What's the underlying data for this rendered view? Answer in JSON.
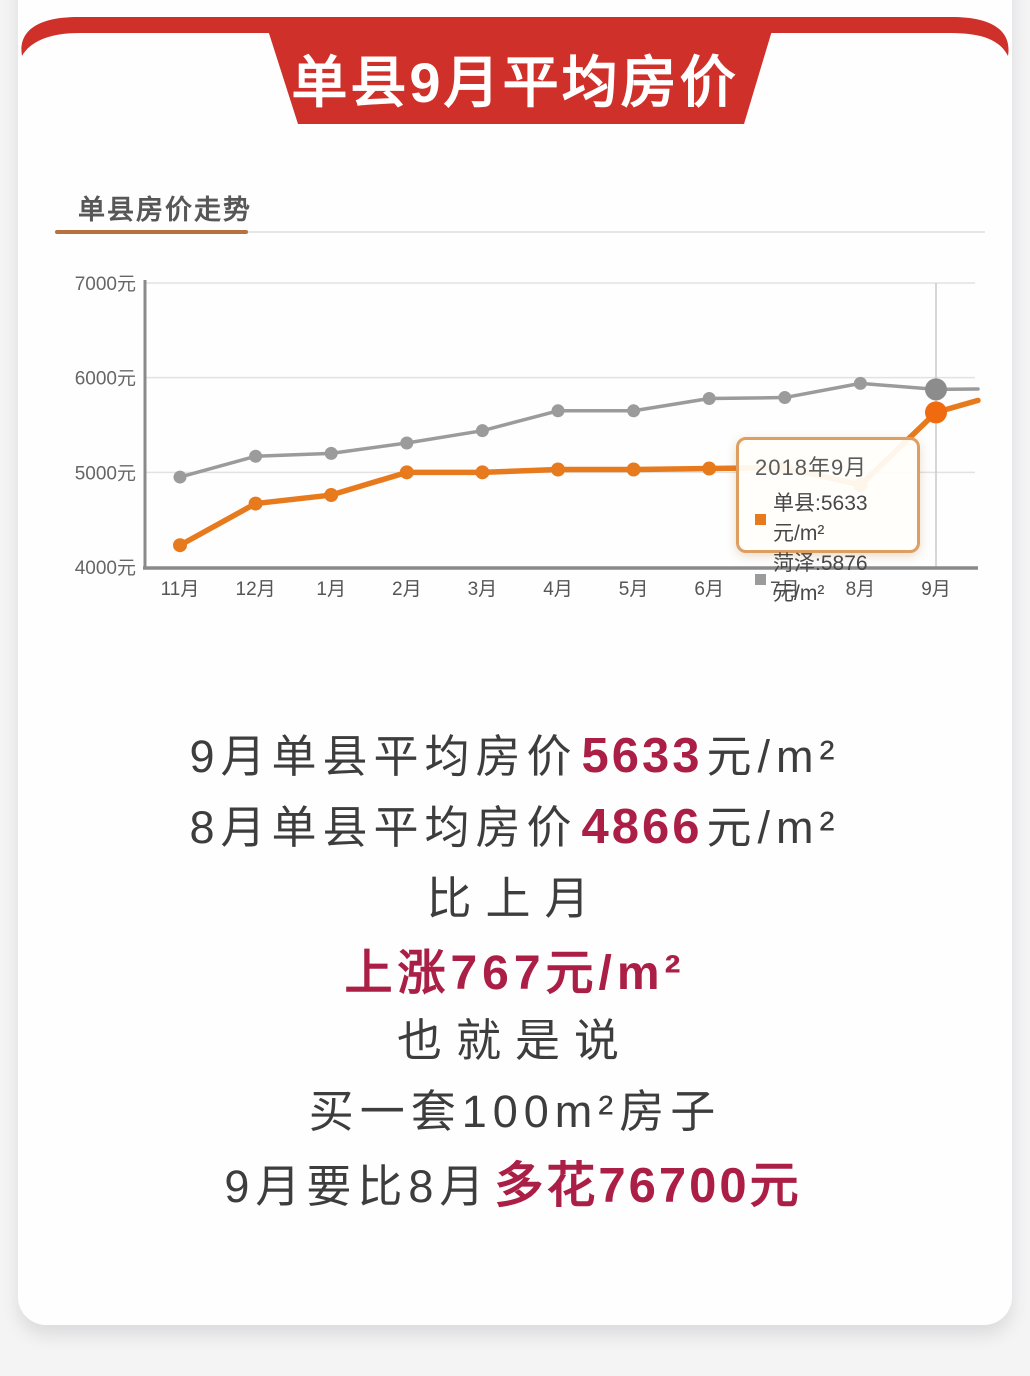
{
  "banner": {
    "title": "单县9月平均房价",
    "ribbon_color": "#D0302A"
  },
  "chart_section": {
    "title": "单县房价走势",
    "accent_color": "#B8703E"
  },
  "tooltip": {
    "title": "2018年9月",
    "rows": [
      {
        "series": "单县",
        "swatch_color": "#E87A1E",
        "text": "单县:5633元/m²"
      },
      {
        "series": "菏泽",
        "swatch_color": "#9B9B9B",
        "text": "菏泽:5876元/m²"
      }
    ]
  },
  "chart_data": {
    "type": "line",
    "title": "单县房价走势",
    "categories": [
      "11月",
      "12月",
      "1月",
      "2月",
      "3月",
      "4月",
      "5月",
      "6月",
      "7月",
      "8月",
      "9月",
      ""
    ],
    "series": [
      {
        "name": "单县",
        "color": "#E87A1E",
        "highlight_color": "#F06A10",
        "values": [
          4230,
          4670,
          4760,
          5000,
          5000,
          5030,
          5030,
          5040,
          5050,
          4866,
          5633,
          5760
        ]
      },
      {
        "name": "菏泽",
        "color": "#9B9B9B",
        "highlight_color": "#8C8C8C",
        "values": [
          4950,
          5170,
          5200,
          5310,
          5440,
          5650,
          5650,
          5780,
          5790,
          5940,
          5876,
          5880
        ]
      }
    ],
    "y_ticks": [
      {
        "label": "7000元",
        "value": 7000
      },
      {
        "label": "6000元",
        "value": 6000
      },
      {
        "label": "5000元",
        "value": 5000
      },
      {
        "label": "4000元",
        "value": 4000
      }
    ],
    "ylim": [
      4000,
      7000
    ],
    "highlight_index": 10,
    "highlight_label": "2018年9月",
    "grid": "horizontal",
    "legend_position": "tooltip-only"
  },
  "summary": {
    "line1": {
      "pre": "9月单县平均房价",
      "num": "5633",
      "post": "元/m²"
    },
    "line2": {
      "pre": "8月单县平均房价",
      "num": "4866",
      "post": "元/m²"
    },
    "line3": {
      "text": "比上月"
    },
    "line4": {
      "text": "上涨767元/m²"
    },
    "line5": {
      "text": "也就是说"
    },
    "line6": {
      "text": "买一套100m²房子"
    },
    "line7": {
      "pre": "9月要比8月",
      "num": "多花76700元"
    }
  },
  "colors": {
    "highlight_red": "#AB1E45",
    "text_gray": "#3D3D3D",
    "banner_red": "#D0302A",
    "axis_gray": "#8A8A8A",
    "gridline_gray": "#E2E2E2"
  }
}
